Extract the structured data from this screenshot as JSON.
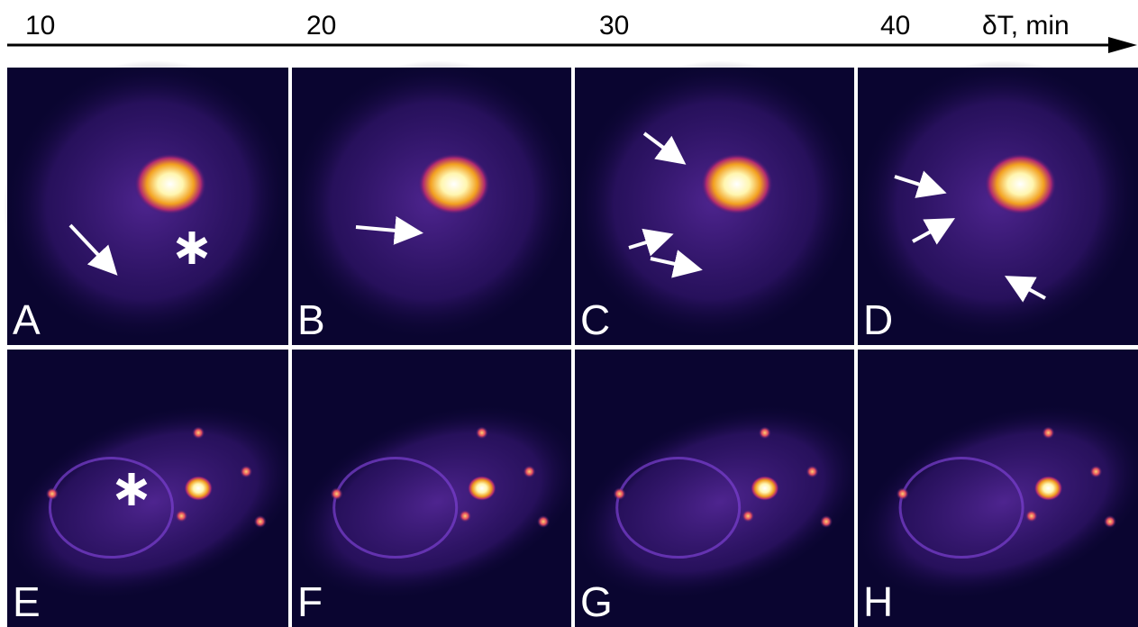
{
  "time_axis": {
    "ticks": [
      10,
      20,
      30,
      40
    ],
    "label": "δT, min"
  },
  "panels": [
    {
      "label": "A"
    },
    {
      "label": "B"
    },
    {
      "label": "C"
    },
    {
      "label": "D"
    },
    {
      "label": "E"
    },
    {
      "label": "F"
    },
    {
      "label": "G"
    },
    {
      "label": "H"
    }
  ]
}
